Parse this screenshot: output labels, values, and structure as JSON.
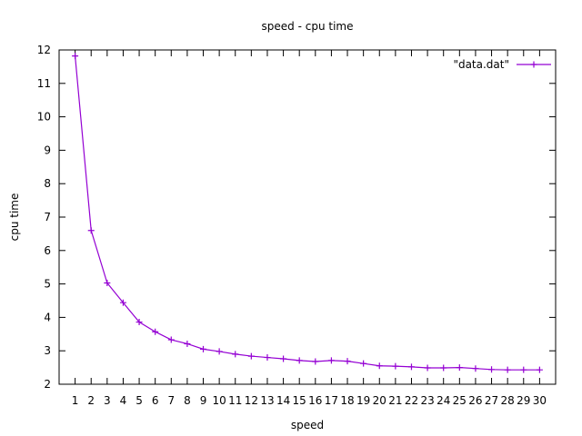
{
  "chart_data": {
    "type": "line",
    "title": "speed - cpu time",
    "xlabel": "speed",
    "ylabel": "cpu time",
    "xlim": [
      0,
      31
    ],
    "ylim": [
      2,
      12
    ],
    "xticks": [
      "1",
      "2",
      "3",
      "4",
      "5",
      "6",
      "7",
      "8",
      "9",
      "10",
      "11",
      "12",
      "13",
      "14",
      "15",
      "16",
      "17",
      "18",
      "19",
      "20",
      "21",
      "22",
      "23",
      "24",
      "25",
      "26",
      "27",
      "28",
      "29",
      "30"
    ],
    "yticks": [
      "2",
      "3",
      "4",
      "5",
      "6",
      "7",
      "8",
      "9",
      "10",
      "11",
      "12"
    ],
    "grid": false,
    "legend_position": "top-right",
    "series": [
      {
        "name": "\"data.dat\"",
        "color": "#9400d3",
        "marker": "plus",
        "x": [
          1,
          2,
          3,
          4,
          5,
          6,
          7,
          8,
          9,
          10,
          11,
          12,
          13,
          14,
          15,
          16,
          17,
          18,
          19,
          20,
          21,
          22,
          23,
          24,
          25,
          26,
          27,
          28,
          29,
          30
        ],
        "y": [
          11.82,
          6.6,
          5.03,
          4.44,
          3.86,
          3.57,
          3.33,
          3.21,
          3.05,
          2.98,
          2.9,
          2.84,
          2.8,
          2.76,
          2.71,
          2.68,
          2.71,
          2.69,
          2.62,
          2.55,
          2.54,
          2.52,
          2.49,
          2.49,
          2.5,
          2.47,
          2.44,
          2.43,
          2.43,
          2.43
        ]
      }
    ]
  }
}
